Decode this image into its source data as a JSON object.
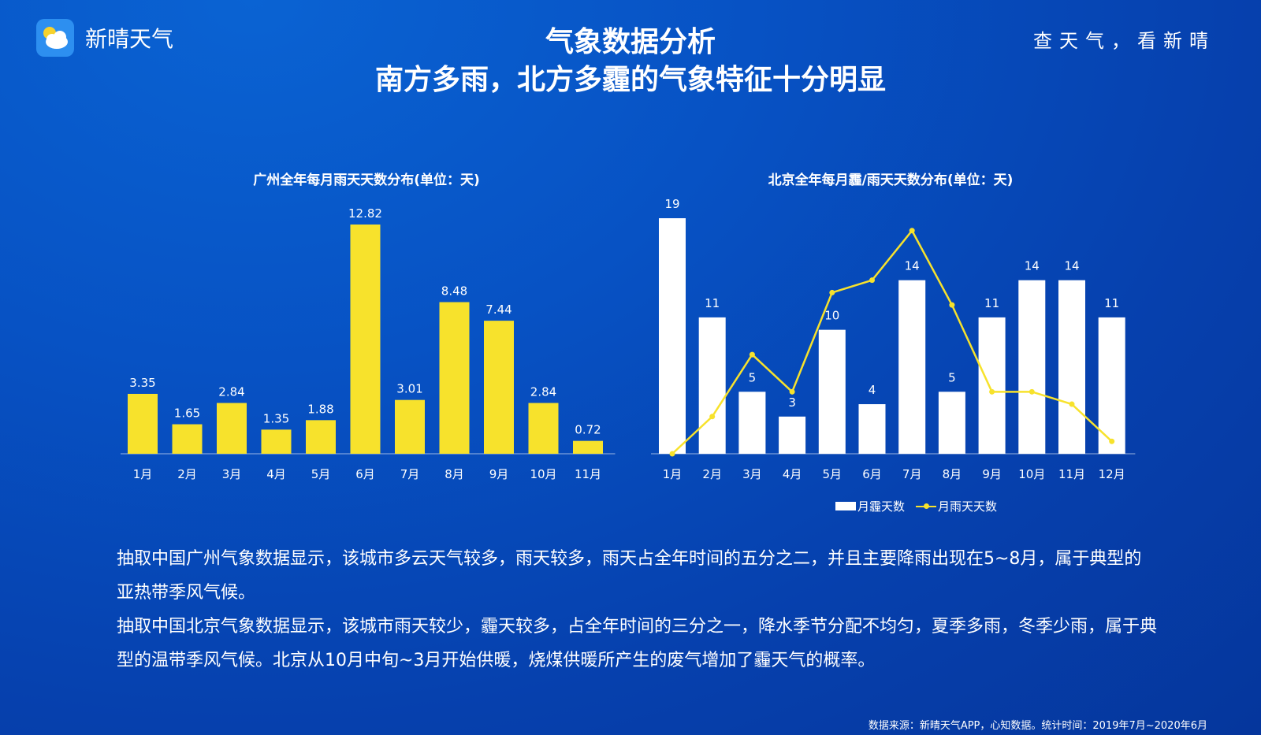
{
  "brand": {
    "name": "新晴天气",
    "icon": "cloud-sun-icon"
  },
  "slogan": "查天气，看新晴",
  "title": {
    "line1": "气象数据分析",
    "line2": "南方多雨，北方多霾的气象特征十分明显"
  },
  "colors": {
    "bar_yellow": "#f7e22c",
    "bar_white": "#ffffff",
    "line_yellow": "#f7e22c"
  },
  "chart_data": [
    {
      "type": "bar",
      "title": "广州全年每月雨天天数分布(单位：天)",
      "categories": [
        "1月",
        "2月",
        "3月",
        "4月",
        "5月",
        "6月",
        "7月",
        "8月",
        "9月",
        "10月",
        "11月"
      ],
      "values": [
        3.35,
        1.65,
        2.84,
        1.35,
        1.88,
        12.82,
        3.01,
        8.48,
        7.44,
        2.84,
        0.72
      ],
      "value_labels": [
        "3.35",
        "1.65",
        "2.84",
        "1.35",
        "1.88",
        "12.82",
        "3.01",
        "8.48",
        "7.44",
        "2.84",
        "0.72"
      ],
      "ylim": [
        0,
        12.82
      ],
      "grid": false
    },
    {
      "type": "bar",
      "title": "北京全年每月霾/雨天天数分布(单位：天)",
      "categories": [
        "1月",
        "2月",
        "3月",
        "4月",
        "5月",
        "6月",
        "7月",
        "8月",
        "9月",
        "10月",
        "11月",
        "12月"
      ],
      "series": [
        {
          "name": "月霾天数",
          "type": "bar",
          "values": [
            19,
            11,
            5,
            3,
            10,
            4,
            14,
            5,
            11,
            14,
            14,
            11
          ]
        },
        {
          "name": "月雨天天数",
          "type": "line",
          "values": [
            0,
            3,
            8,
            5,
            13,
            14,
            18,
            12,
            5,
            5,
            4,
            1
          ]
        }
      ],
      "ylim": [
        0,
        19
      ],
      "legend": "bottom",
      "grid": false
    }
  ],
  "description": [
    "抽取中国广州气象数据显示，该城市多云天气较多，雨天较多，雨天占全年时间的五分之二，并且主要降雨出现在5~8月，属于典型的亚热带季风气候。",
    "抽取中国北京气象数据显示，该城市雨天较少，霾天较多，占全年时间的三分之一，降水季节分配不均匀，夏季多雨，冬季少雨，属于典型的温带季风气候。北京从10月中旬~3月开始供暖，烧煤供暖所产生的废气增加了霾天气的概率。"
  ],
  "source": "数据来源：新晴天气APP，心知数据。统计时间：2019年7月~2020年6月"
}
